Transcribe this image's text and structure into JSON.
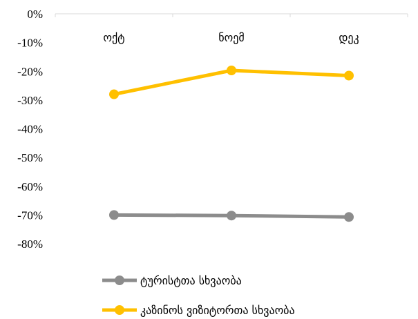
{
  "chart_data": {
    "type": "line",
    "categories": [
      "ოქტ",
      "ნოემ",
      "დეკ"
    ],
    "y_ticks": [
      "0%",
      "-10%",
      "-20%",
      "-30%",
      "-40%",
      "-50%",
      "-60%",
      "-70%",
      "-80%"
    ],
    "ylim": [
      -0.8,
      0
    ],
    "grid": false,
    "category_axis_position": "top",
    "legend_placement": "bottom",
    "series": [
      {
        "name": "ტურისტთა სხვაობა",
        "values": [
          -0.7,
          -0.702,
          -0.707
        ],
        "color": "#8c8c8c"
      },
      {
        "name": "კაზინოს ვიზიტორთა სხვაობა",
        "values": [
          -0.28,
          -0.197,
          -0.215
        ],
        "color": "#ffc000"
      }
    ]
  }
}
